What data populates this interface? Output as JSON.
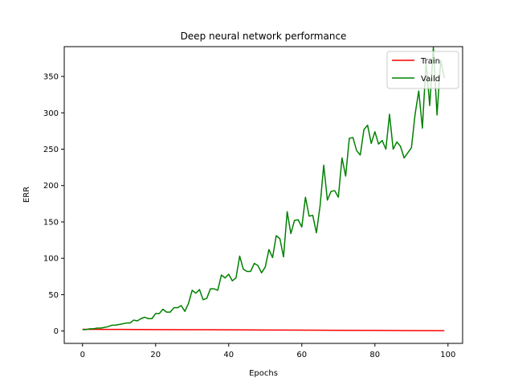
{
  "chart_data": {
    "type": "line",
    "title": "Deep neural network performance",
    "xlabel": "Epochs",
    "ylabel": "ERR",
    "xlim": [
      -5,
      104
    ],
    "ylim": [
      -17,
      391
    ],
    "xticks": [
      0,
      20,
      40,
      60,
      80,
      100
    ],
    "yticks": [
      0,
      50,
      100,
      150,
      200,
      250,
      300,
      350
    ],
    "grid": false,
    "legend_position": "top-right",
    "series": [
      {
        "name": "Train",
        "color": "#ff0000",
        "x": [
          0,
          10,
          20,
          30,
          40,
          50,
          60,
          70,
          80,
          90,
          99
        ],
        "y": [
          2.3,
          2.2,
          2.0,
          1.8,
          1.6,
          1.4,
          1.2,
          1.0,
          0.8,
          0.6,
          0.4
        ]
      },
      {
        "name": "Vaild",
        "color": "#008000",
        "x": [
          0,
          1,
          2,
          3,
          4,
          5,
          6,
          7,
          8,
          9,
          10,
          11,
          12,
          13,
          14,
          15,
          16,
          17,
          18,
          19,
          20,
          21,
          22,
          23,
          24,
          25,
          26,
          27,
          28,
          29,
          30,
          31,
          32,
          33,
          34,
          35,
          36,
          37,
          38,
          39,
          40,
          41,
          42,
          43,
          44,
          45,
          46,
          47,
          48,
          49,
          50,
          51,
          52,
          53,
          54,
          55,
          56,
          57,
          58,
          59,
          60,
          61,
          62,
          63,
          64,
          65,
          66,
          67,
          68,
          69,
          70,
          71,
          72,
          73,
          74,
          75,
          76,
          77,
          78,
          79,
          80,
          81,
          82,
          83,
          84,
          85,
          86,
          87,
          88,
          89,
          90,
          91,
          92,
          93,
          94,
          95,
          96,
          97,
          98,
          99
        ],
        "y": [
          2,
          2,
          3,
          3,
          4,
          4,
          5,
          6,
          8,
          8,
          9,
          10,
          11,
          11,
          15,
          14,
          17,
          19,
          17,
          17,
          24,
          24,
          30,
          26,
          26,
          32,
          32,
          35,
          27,
          38,
          56,
          52,
          57,
          43,
          45,
          58,
          58,
          56,
          77,
          73,
          78,
          69,
          73,
          103,
          85,
          82,
          82,
          93,
          90,
          80,
          88,
          112,
          101,
          131,
          127,
          102,
          164,
          134,
          152,
          153,
          143,
          184,
          158,
          159,
          135,
          172,
          228,
          180,
          192,
          193,
          184,
          238,
          213,
          265,
          266,
          248,
          242,
          277,
          283,
          258,
          274,
          257,
          262,
          250,
          298,
          250,
          260,
          254,
          238,
          245,
          252,
          298,
          330,
          279,
          370,
          310,
          390,
          297,
          372,
          348
        ]
      }
    ]
  }
}
